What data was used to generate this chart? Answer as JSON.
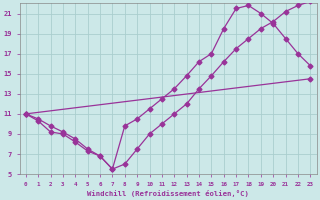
{
  "xlabel": "Windchill (Refroidissement éolien,°C)",
  "bg_color": "#cce8e8",
  "line_color": "#993399",
  "grid_color": "#aacece",
  "xlim": [
    -0.5,
    23.5
  ],
  "ylim": [
    5,
    22
  ],
  "xticks": [
    0,
    1,
    2,
    3,
    4,
    5,
    6,
    7,
    8,
    9,
    10,
    11,
    12,
    13,
    14,
    15,
    16,
    17,
    18,
    19,
    20,
    21,
    22,
    23
  ],
  "yticks": [
    5,
    7,
    9,
    11,
    13,
    15,
    17,
    19,
    21
  ],
  "curve1_x": [
    0,
    1,
    2,
    3,
    4,
    5,
    6,
    7,
    8,
    9,
    10,
    11,
    12,
    13,
    14,
    15,
    16,
    17,
    18,
    19,
    20,
    21,
    22,
    23
  ],
  "curve1_y": [
    11.0,
    10.3,
    9.2,
    9.0,
    8.2,
    7.3,
    6.8,
    5.5,
    6.0,
    7.5,
    9.0,
    10.0,
    11.0,
    12.0,
    13.5,
    14.8,
    16.2,
    17.5,
    18.5,
    19.5,
    20.2,
    21.2,
    21.8,
    22.2
  ],
  "curve2_x": [
    0,
    1,
    2,
    3,
    4,
    5,
    6,
    7,
    8,
    9,
    10,
    11,
    12,
    13,
    14,
    15,
    16,
    17,
    18,
    19,
    20,
    21,
    22,
    23
  ],
  "curve2_y": [
    11.0,
    10.5,
    9.8,
    9.2,
    8.5,
    7.5,
    6.8,
    5.5,
    9.8,
    10.5,
    11.5,
    12.5,
    13.5,
    14.8,
    16.2,
    17.0,
    19.5,
    21.5,
    21.8,
    21.0,
    20.0,
    18.5,
    17.0,
    15.8
  ],
  "curve3_x": [
    0,
    23
  ],
  "curve3_y": [
    11.0,
    14.5
  ]
}
